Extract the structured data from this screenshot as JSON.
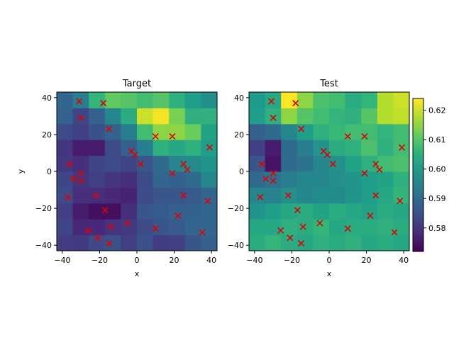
{
  "chart_data": [
    {
      "type": "heatmap",
      "title": "Target",
      "xlabel": "x",
      "ylabel": "y",
      "xlim": [
        -43,
        43
      ],
      "ylim": [
        -43,
        43
      ],
      "xticks": [
        -40,
        -20,
        0,
        20,
        40
      ],
      "yticks": [
        -40,
        -20,
        0,
        20,
        40
      ],
      "grid_extent": [
        -43,
        43
      ],
      "colormap": "viridis",
      "vmin": 0.572,
      "vmax": 0.624,
      "grid": [
        [
          0.5815,
          0.581,
          0.5835,
          0.585,
          0.582,
          0.585,
          0.5815,
          0.582,
          0.586,
          0.588
        ],
        [
          0.583,
          0.578,
          0.578,
          0.58,
          0.581,
          0.584,
          0.586,
          0.587,
          0.589,
          0.589
        ],
        [
          0.582,
          0.576,
          0.574,
          0.574,
          0.579,
          0.586,
          0.587,
          0.588,
          0.588,
          0.589
        ],
        [
          0.584,
          0.579,
          0.579,
          0.578,
          0.577,
          0.584,
          0.586,
          0.586,
          0.587,
          0.589
        ],
        [
          0.583,
          0.58,
          0.582,
          0.58,
          0.579,
          0.584,
          0.589,
          0.588,
          0.59,
          0.596
        ],
        [
          0.581,
          0.579,
          0.583,
          0.584,
          0.583,
          0.586,
          0.59,
          0.596,
          0.597,
          0.599
        ],
        [
          0.58,
          0.576,
          0.576,
          0.584,
          0.588,
          0.594,
          0.605,
          0.603,
          0.605,
          0.601
        ],
        [
          0.584,
          0.582,
          0.585,
          0.588,
          0.594,
          0.608,
          0.615,
          0.615,
          0.612,
          0.602
        ],
        [
          0.588,
          0.583,
          0.588,
          0.596,
          0.604,
          0.62,
          0.623,
          0.613,
          0.605,
          0.605
        ],
        [
          0.589,
          0.594,
          0.606,
          0.611,
          0.61,
          0.608,
          0.61,
          0.605,
          0.601,
          0.598
        ]
      ],
      "points": [
        {
          "x": -31,
          "y": 38
        },
        {
          "x": -18,
          "y": 37
        },
        {
          "x": -30,
          "y": 29
        },
        {
          "x": -15,
          "y": 23
        },
        {
          "x": 10,
          "y": 19
        },
        {
          "x": 19,
          "y": 19
        },
        {
          "x": 39,
          "y": 13
        },
        {
          "x": -3,
          "y": 11
        },
        {
          "x": -1,
          "y": 9
        },
        {
          "x": 2,
          "y": 4
        },
        {
          "x": 25,
          "y": 4
        },
        {
          "x": -36,
          "y": 4
        },
        {
          "x": 27,
          "y": 1
        },
        {
          "x": 19,
          "y": -1
        },
        {
          "x": -30,
          "y": -1
        },
        {
          "x": -34,
          "y": -4
        },
        {
          "x": -30,
          "y": -5
        },
        {
          "x": -22,
          "y": -13
        },
        {
          "x": 25,
          "y": -13
        },
        {
          "x": -37,
          "y": -14
        },
        {
          "x": 38,
          "y": -16
        },
        {
          "x": -17,
          "y": -21
        },
        {
          "x": 22,
          "y": -24
        },
        {
          "x": -5,
          "y": -28
        },
        {
          "x": -14,
          "y": -30
        },
        {
          "x": 10,
          "y": -31
        },
        {
          "x": -26,
          "y": -32
        },
        {
          "x": 35,
          "y": -33
        },
        {
          "x": -21,
          "y": -36
        },
        {
          "x": -15,
          "y": -39
        }
      ]
    },
    {
      "type": "heatmap",
      "title": "Test",
      "xlabel": "x",
      "ylabel": "",
      "xlim": [
        -43,
        43
      ],
      "ylim": [
        -43,
        43
      ],
      "xticks": [
        -40,
        -20,
        0,
        20,
        40
      ],
      "yticks": [
        -40,
        -20,
        0,
        20,
        40
      ],
      "grid_extent": [
        -43,
        43
      ],
      "colormap": "viridis",
      "vmin": 0.572,
      "vmax": 0.624,
      "grid": [
        [
          0.604,
          0.606,
          0.604,
          0.603,
          0.605,
          0.604,
          0.605,
          0.603,
          0.604,
          0.603
        ],
        [
          0.603,
          0.603,
          0.605,
          0.604,
          0.606,
          0.603,
          0.604,
          0.604,
          0.605,
          0.604
        ],
        [
          0.599,
          0.601,
          0.603,
          0.604,
          0.602,
          0.604,
          0.603,
          0.602,
          0.604,
          0.603
        ],
        [
          0.596,
          0.595,
          0.598,
          0.596,
          0.597,
          0.597,
          0.599,
          0.601,
          0.603,
          0.606
        ],
        [
          0.59,
          0.592,
          0.594,
          0.596,
          0.596,
          0.598,
          0.599,
          0.601,
          0.602,
          0.605
        ],
        [
          0.586,
          0.575,
          0.59,
          0.592,
          0.596,
          0.598,
          0.602,
          0.605,
          0.608,
          0.609
        ],
        [
          0.582,
          0.576,
          0.59,
          0.594,
          0.599,
          0.604,
          0.605,
          0.609,
          0.605,
          0.608
        ],
        [
          0.588,
          0.59,
          0.596,
          0.601,
          0.605,
          0.607,
          0.608,
          0.608,
          0.606,
          0.608
        ],
        [
          0.601,
          0.605,
          0.615,
          0.61,
          0.608,
          0.606,
          0.605,
          0.61,
          0.618,
          0.619
        ],
        [
          0.6,
          0.603,
          0.624,
          0.615,
          0.609,
          0.608,
          0.604,
          0.606,
          0.618,
          0.62
        ]
      ],
      "points": [
        {
          "x": -31,
          "y": 38
        },
        {
          "x": -18,
          "y": 37
        },
        {
          "x": -30,
          "y": 29
        },
        {
          "x": -15,
          "y": 23
        },
        {
          "x": 10,
          "y": 19
        },
        {
          "x": 19,
          "y": 19
        },
        {
          "x": 39,
          "y": 13
        },
        {
          "x": -3,
          "y": 11
        },
        {
          "x": -1,
          "y": 9
        },
        {
          "x": 2,
          "y": 4
        },
        {
          "x": 25,
          "y": 4
        },
        {
          "x": -36,
          "y": 4
        },
        {
          "x": 27,
          "y": 1
        },
        {
          "x": 19,
          "y": -1
        },
        {
          "x": -30,
          "y": -1
        },
        {
          "x": -34,
          "y": -4
        },
        {
          "x": -30,
          "y": -5
        },
        {
          "x": -22,
          "y": -13
        },
        {
          "x": 25,
          "y": -13
        },
        {
          "x": -37,
          "y": -14
        },
        {
          "x": 38,
          "y": -16
        },
        {
          "x": -17,
          "y": -21
        },
        {
          "x": 22,
          "y": -24
        },
        {
          "x": -5,
          "y": -28
        },
        {
          "x": -14,
          "y": -30
        },
        {
          "x": 10,
          "y": -31
        },
        {
          "x": -26,
          "y": -32
        },
        {
          "x": 35,
          "y": -33
        },
        {
          "x": -21,
          "y": -36
        },
        {
          "x": -15,
          "y": -39
        }
      ]
    }
  ],
  "colorbar": {
    "ticks": [
      0.58,
      0.59,
      0.6,
      0.61,
      0.62
    ],
    "tick_labels": [
      "0.58",
      "0.59",
      "0.60",
      "0.61",
      "0.62"
    ]
  },
  "marker_color": "#e00000"
}
